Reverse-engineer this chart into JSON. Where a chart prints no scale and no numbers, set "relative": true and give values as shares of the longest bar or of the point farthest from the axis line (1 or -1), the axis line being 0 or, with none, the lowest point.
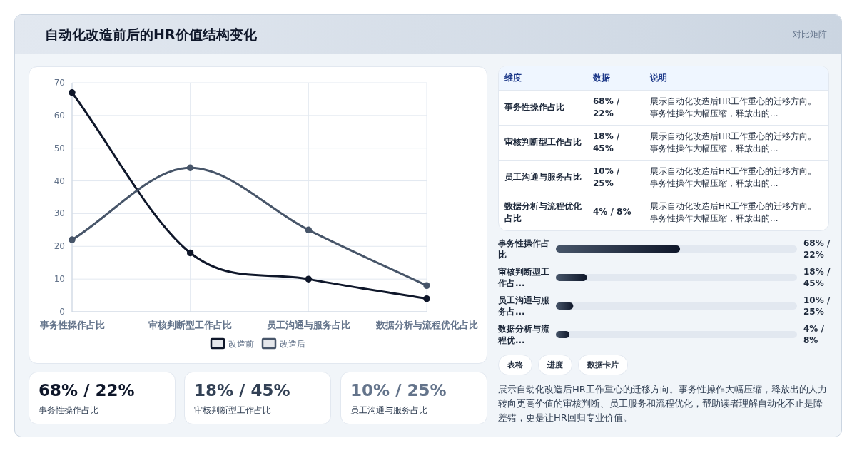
{
  "chart_data": [
    {
      "type": "other",
      "title": "自动化改造前后的HR价值结构变化",
      "subtitle": "对比矩阵"
    },
    {
      "type": "line",
      "categories": [
        "事务性操作占比",
        "审核判断型工作占比",
        "员工沟通与服务占比",
        "数据分析与流程优化占比"
      ],
      "series": [
        {
          "name": "改造前",
          "color": "#0f172a",
          "values": [
            67,
            18,
            10,
            4
          ]
        },
        {
          "name": "改造后",
          "color": "#475569",
          "values": [
            22,
            44,
            25,
            8
          ]
        }
      ],
      "ylim": [
        0,
        70
      ],
      "yticks": [
        0,
        10,
        20,
        30,
        40,
        50,
        60,
        70
      ],
      "grid": true,
      "legend": "bottom",
      "marker": "circle",
      "line_style": "solid"
    },
    {
      "type": "other",
      "categories": [
        "维度",
        "数据",
        "说明"
      ],
      "cell_labels": [
        [
          "事务性操作占比",
          "68% / 22%",
          "展示自动化改造后HR工作重心的迁移方向。事务性操作大幅压缩，释放出的..."
        ],
        [
          "审核判断型工作占比",
          "18% / 45%",
          "展示自动化改造后HR工作重心的迁移方向。事务性操作大幅压缩，释放出的..."
        ],
        [
          "员工沟通与服务占比",
          "10% / 25%",
          "展示自动化改造后HR工作重心的迁移方向。事务性操作大幅压缩，释放出的..."
        ],
        [
          "数据分析与流程优化占比",
          "4% / 8%",
          "展示自动化改造后HR工作重心的迁移方向。事务性操作大幅压缩，释放出的..."
        ]
      ]
    },
    {
      "type": "bar",
      "orientation": "horizontal",
      "relative": true,
      "categories": [
        "事务性操作占比",
        "审核判断型工作占...",
        "员工沟通与服务占...",
        "数据分析与流程优..."
      ],
      "values": [
        1,
        0.25,
        0.14,
        0.11
      ],
      "color": "#0f172a",
      "annotations": [
        "68% / 22%",
        "18% / 45%",
        "10% / 25%",
        "4% / 8%"
      ]
    },
    {
      "type": "other",
      "categories": [
        "事务性操作占比",
        "审核判断型工作占比",
        "员工沟通与服务占比"
      ],
      "value_labels": [
        "68% / 22%",
        "18% / 45%",
        "10% / 25%"
      ]
    },
    {
      "type": "other",
      "annotations": [
        "表格",
        "进度",
        "数据卡片",
        "展示自动化改造后HR工作重心的迁移方向。事务性操作大幅压缩，释放出的人力转向更高价值的审核判断、员工服务和流程优化，帮助读者理解自动化不止是降差错，更是让HR回归专业价值。"
      ]
    }
  ]
}
